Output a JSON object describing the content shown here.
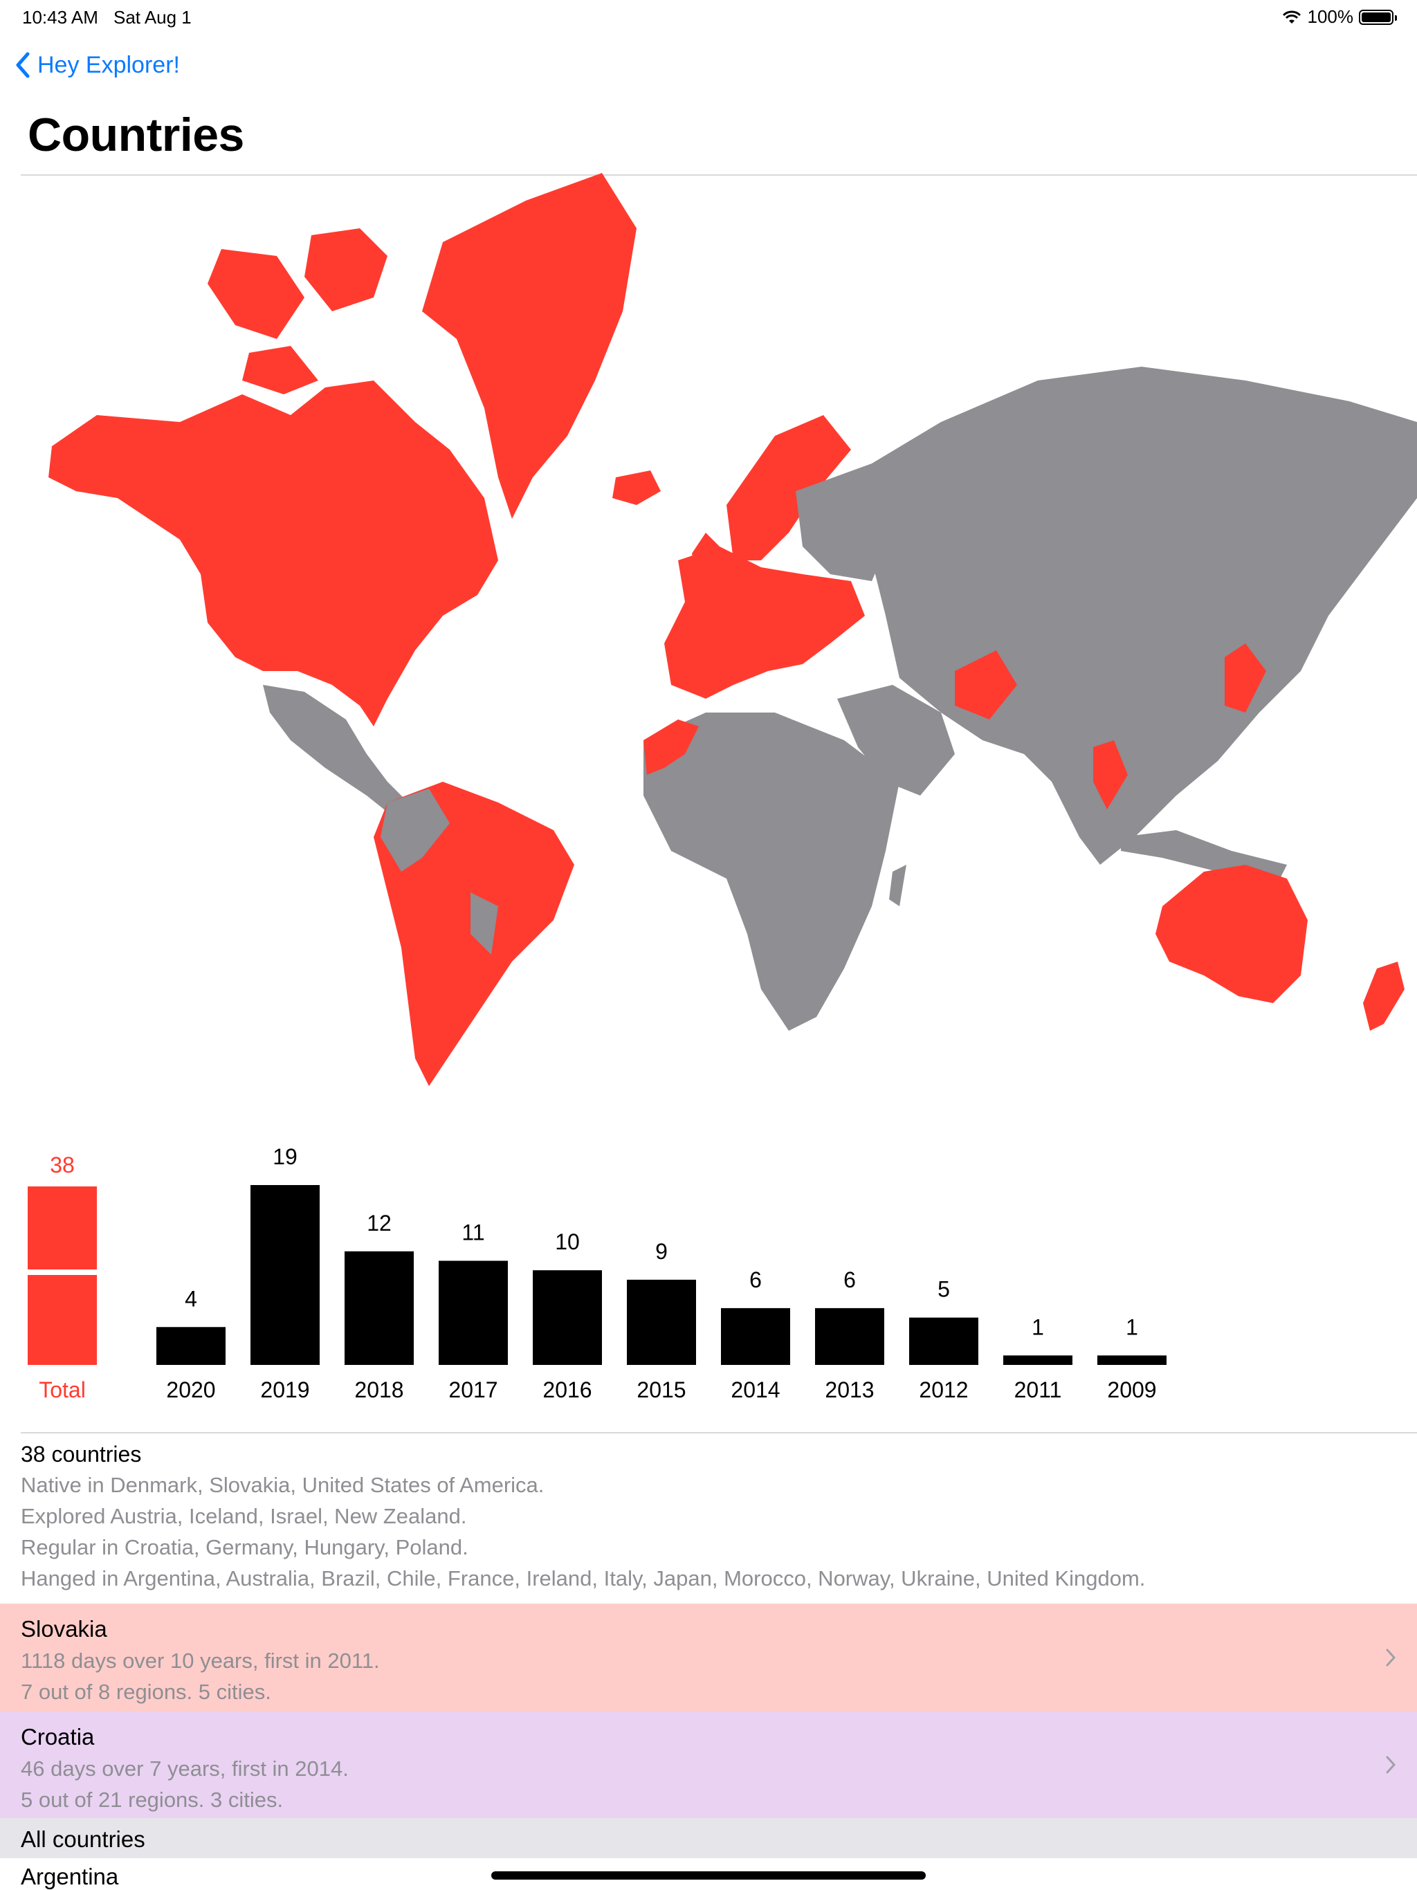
{
  "status": {
    "time": "10:43 AM",
    "date": "Sat Aug 1",
    "battery": "100%"
  },
  "nav": {
    "back_label": "Hey Explorer!",
    "title": "Countries"
  },
  "colors": {
    "visited": "#ff3b30",
    "unvisited": "#8e8e93",
    "accent": "#0a7aff",
    "bar": "#000000"
  },
  "chart_data": {
    "type": "bar",
    "total": {
      "label": "Total",
      "value": 38
    },
    "categories": [
      "2020",
      "2019",
      "2018",
      "2017",
      "2016",
      "2015",
      "2014",
      "2013",
      "2012",
      "2011",
      "2009"
    ],
    "values": [
      4,
      19,
      12,
      11,
      10,
      9,
      6,
      6,
      5,
      1,
      1
    ]
  },
  "summary": {
    "title": "38 countries",
    "lines": [
      "Native in Denmark, Slovakia, United States of America.",
      "Explored Austria, Iceland, Israel, New Zealand.",
      "Regular in Croatia, Germany, Hungary, Poland.",
      "Hanged in Argentina, Australia, Brazil, Chile, France, Ireland, Italy, Japan, Morocco, Norway, Ukraine, United Kingdom."
    ]
  },
  "featured": [
    {
      "name": "Slovakia",
      "line1": "1118 days over 10 years, first in 2011.",
      "line2": "7 out of 8 regions. 5 cities.",
      "bg": "#ffcdc9"
    },
    {
      "name": "Croatia",
      "line1": "46 days over 7 years, first in 2014.",
      "line2": "5 out of 21 regions. 3 cities.",
      "bg": "#ead2f3"
    }
  ],
  "all_countries": {
    "header": "All countries",
    "first_item": "Argentina"
  }
}
